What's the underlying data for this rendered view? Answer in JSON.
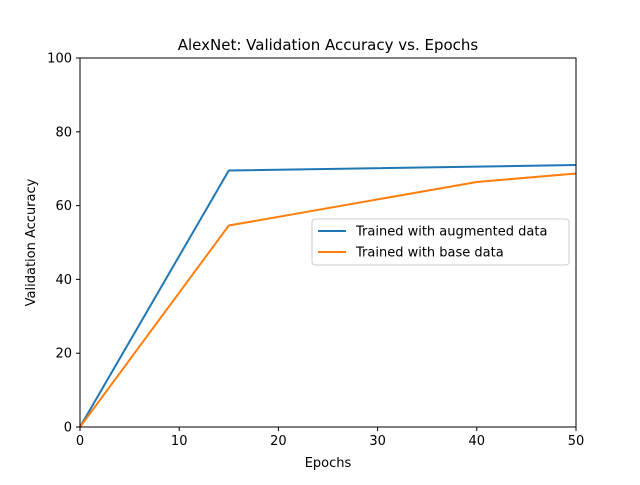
{
  "chart_data": {
    "type": "line",
    "title": "AlexNet: Validation Accuracy vs. Epochs",
    "xlabel": "Epochs",
    "ylabel": "Validation Accuracy",
    "xlim": [
      0,
      50
    ],
    "ylim": [
      0,
      100
    ],
    "xticks": [
      0,
      10,
      20,
      30,
      40,
      50
    ],
    "yticks": [
      0,
      20,
      40,
      60,
      80,
      100
    ],
    "grid": false,
    "legend_position": "center-right",
    "series": [
      {
        "name": "Trained with augmented data",
        "color": "#1f77b4",
        "x": [
          0,
          15,
          50
        ],
        "y": [
          0,
          69.5,
          71
        ]
      },
      {
        "name": "Trained with base data",
        "color": "#ff7f0e",
        "x": [
          0,
          15,
          40,
          50
        ],
        "y": [
          0,
          54.6,
          66.4,
          68.7
        ]
      }
    ]
  }
}
